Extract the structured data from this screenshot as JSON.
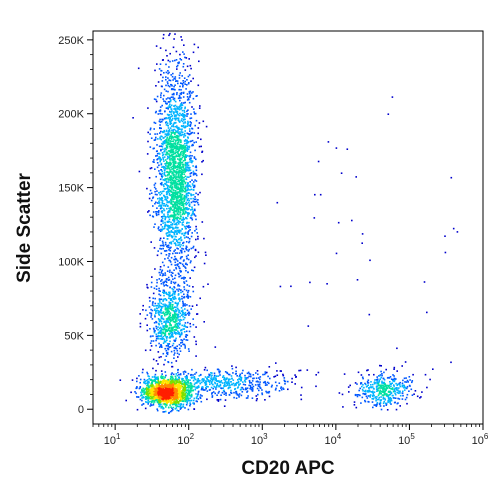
{
  "chart_data": {
    "type": "scatter",
    "subtype": "flow-cytometry-density-dot-plot",
    "title": "",
    "xlabel": "CD20 APC",
    "ylabel": "Side Scatter",
    "x_scale": "log",
    "x_range": [
      5,
      1000000
    ],
    "y_range": [
      -10000,
      256000
    ],
    "x_ticks": [
      {
        "value": 10,
        "base": "10",
        "exp": "1"
      },
      {
        "value": 100,
        "base": "10",
        "exp": "2"
      },
      {
        "value": 1000,
        "base": "10",
        "exp": "3"
      },
      {
        "value": 10000,
        "base": "10",
        "exp": "4"
      },
      {
        "value": 100000,
        "base": "10",
        "exp": "5"
      },
      {
        "value": 1000000,
        "base": "10",
        "exp": "6"
      }
    ],
    "y_ticks": [
      {
        "value": 0,
        "label": "0"
      },
      {
        "value": 50000,
        "label": "50K"
      },
      {
        "value": 100000,
        "label": "100K"
      },
      {
        "value": 150000,
        "label": "150K"
      },
      {
        "value": 200000,
        "label": "200K"
      },
      {
        "value": 250000,
        "label": "250K"
      }
    ],
    "color_scale": [
      "#0000cc",
      "#0057ff",
      "#00b4ff",
      "#00e0a0",
      "#7be000",
      "#ffe600",
      "#ff8a00",
      "#ff1e00"
    ],
    "populations": [
      {
        "x_center": 50,
        "y_center": 12000,
        "x_log_sd": 0.17,
        "y_sd": 5000,
        "count": 1500,
        "density": 1.0
      },
      {
        "x_center": 65,
        "y_center": 160000,
        "x_log_sd": 0.14,
        "y_sd": 35000,
        "count": 2200,
        "density": 0.6
      },
      {
        "x_center": 55,
        "y_center": 62000,
        "x_log_sd": 0.14,
        "y_sd": 14000,
        "count": 700,
        "density": 0.45
      },
      {
        "x_center": 300,
        "y_center": 18000,
        "x_log_sd": 0.45,
        "y_sd": 5000,
        "count": 500,
        "density": 0.3
      },
      {
        "x_center": 45000,
        "y_center": 14000,
        "x_log_sd": 0.2,
        "y_sd": 6000,
        "count": 420,
        "density": 0.45
      },
      {
        "x_center": 30000,
        "y_center": 100000,
        "x_log_sd": 0.7,
        "y_sd": 60000,
        "count": 40,
        "density": 0.05
      }
    ],
    "grid": false,
    "legend": "none"
  }
}
